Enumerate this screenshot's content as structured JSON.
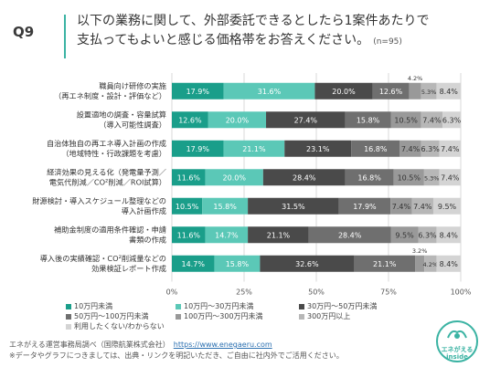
{
  "header": {
    "question_id": "Q9",
    "question_line1": "以下の業務に関して、外部委託できるとしたら1案件あたりで",
    "question_line2": "支払ってもよいと感じる価格帯をお答えください。",
    "sample_size": "(n=95)"
  },
  "colors": {
    "accent": "#3bb3a3",
    "series": [
      "#1a9e8a",
      "#5bc8b7",
      "#4a4a4a",
      "#6f6f6f",
      "#999999",
      "#b7b7b7",
      "#d4d4d4"
    ]
  },
  "chart_data": {
    "type": "bar",
    "orientation": "horizontal-stacked-100",
    "categories": [
      [
        "職員向け研修の実施",
        "（再エネ制度・設計・評価など）"
      ],
      [
        "設置適地の調査・容量試算",
        "（導入可能性調査）"
      ],
      [
        "自治体独自の再エネ導入計画の作成",
        "（地域特性・行政課題を考慮）"
      ],
      [
        "経済効果の見える化（発電量予測／",
        "電気代削減／CO²削減／ROI試算）"
      ],
      [
        "財源検討・導入スケジュール整理などの",
        "導入計画作成"
      ],
      [
        "補助金制度の適用条件確認・申請",
        "書類の作成"
      ],
      [
        "導入後の実績確認・CO²削減量などの",
        "効果検証レポート作成"
      ]
    ],
    "series": [
      {
        "name": "10万円未満",
        "values": [
          17.9,
          12.6,
          17.9,
          11.6,
          10.5,
          11.6,
          14.7
        ]
      },
      {
        "name": "10万円〜30万円未満",
        "values": [
          31.6,
          20.0,
          21.1,
          20.0,
          15.8,
          14.7,
          15.8
        ]
      },
      {
        "name": "30万円〜50万円未満",
        "values": [
          20.0,
          27.4,
          23.1,
          28.4,
          31.5,
          21.1,
          32.6
        ]
      },
      {
        "name": "50万円〜100万円未満",
        "values": [
          12.6,
          15.8,
          16.8,
          16.8,
          17.9,
          28.4,
          21.1
        ]
      },
      {
        "name": "100万円〜300万円未満",
        "values": [
          4.2,
          10.5,
          7.4,
          10.5,
          7.4,
          9.5,
          3.2
        ]
      },
      {
        "name": "300万円以上",
        "values": [
          5.3,
          7.4,
          6.3,
          5.3,
          7.4,
          6.3,
          4.2
        ]
      },
      {
        "name": "利用したくない/わからない",
        "values": [
          8.4,
          6.3,
          7.4,
          7.4,
          9.5,
          8.4,
          8.4
        ]
      }
    ],
    "value_labels": [
      [
        "17.9%",
        "31.6%",
        "20.0%",
        "12.6%",
        "4.2%",
        "5.3%",
        "8.4%"
      ],
      [
        "12.6%",
        "20.0%",
        "27.4%",
        "15.8%",
        "10.5%",
        "7.4%",
        "6.3%"
      ],
      [
        "17.9%",
        "21.1%",
        "23.1%",
        "16.8%",
        "7.4%",
        "6.3%",
        "7.4%"
      ],
      [
        "11.6%",
        "20.0%",
        "28.4%",
        "16.8%",
        "10.5%",
        "5.3%",
        "7.4%"
      ],
      [
        "10.5%",
        "15.8%",
        "31.5%",
        "17.9%",
        "7.4%",
        "7.4%",
        "9.5%"
      ],
      [
        "11.6%",
        "14.7%",
        "21.1%",
        "28.4%",
        "9.5%",
        "6.3%",
        "8.4%"
      ],
      [
        "14.7%",
        "15.8%",
        "32.6%",
        "21.1%",
        "3.2%",
        "4.2%",
        "8.4%"
      ]
    ],
    "xticks": [
      "0%",
      "25%",
      "50%",
      "75%",
      "100%"
    ],
    "xlim": [
      0,
      100
    ],
    "grid": true,
    "legend_position": "bottom"
  },
  "footer": {
    "line1_prefix": "エネがえる運営事務局調べ（国際航業株式会社）",
    "line1_link": "https://www.enegaeru.com",
    "line2": "※データやグラフにつきましては、出典・リンクを明記いただき、ご自由に社内外でご活用ください。"
  },
  "logo": {
    "line1": "エネがえる",
    "line2": "inside"
  }
}
